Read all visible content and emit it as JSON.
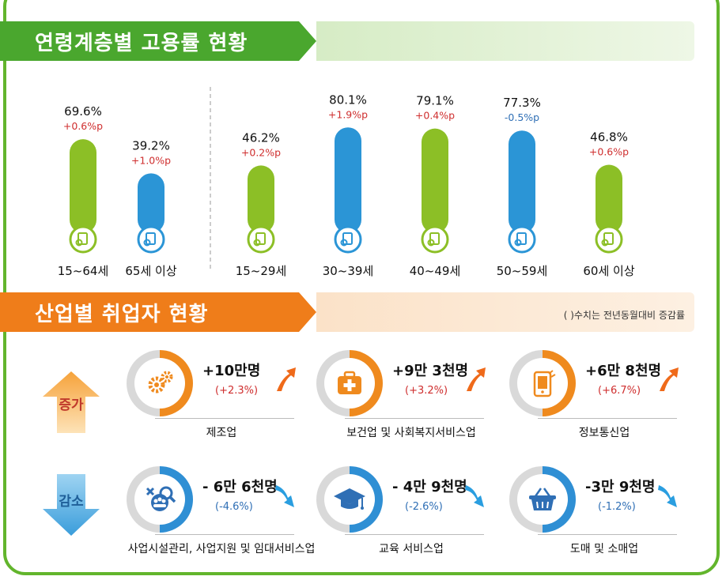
{
  "section1": {
    "title": "연령계층별 고용률 현황"
  },
  "section2": {
    "title": "산업별 취업자 현황",
    "note": "( )수치는 전년동월대비 증감률"
  },
  "colors": {
    "green": "#8cbf26",
    "blue": "#2b95d6",
    "orange": "#ef7d1a",
    "up": "#cf2e2e",
    "down": "#2f6fb5"
  },
  "chart_data": {
    "type": "bar",
    "title": "연령계층별 고용률 현황",
    "categories": [
      "15~64세",
      "65세 이상",
      "15~29세",
      "30~39세",
      "40~49세",
      "50~59세",
      "60세 이상"
    ],
    "values": [
      69.6,
      39.2,
      46.2,
      80.1,
      79.1,
      77.3,
      46.8
    ],
    "value_labels": [
      "69.6%",
      "39.2%",
      "46.2%",
      "80.1%",
      "79.1%",
      "77.3%",
      "46.8%"
    ],
    "changes": [
      0.6,
      1.0,
      0.2,
      1.9,
      0.4,
      -0.5,
      0.6
    ],
    "change_labels": [
      "+0.6%p",
      "+1.0%p",
      "+0.2%p",
      "+1.9%p",
      "+0.4%p",
      "-0.5%p",
      "+0.6%p"
    ],
    "bar_colors": [
      "green",
      "blue",
      "green",
      "blue",
      "green",
      "blue",
      "green"
    ],
    "unit": "%"
  },
  "increase": {
    "tag": "증가",
    "items": [
      {
        "name": "제조업",
        "value": "+10만명",
        "pct": "(+2.3%)",
        "icon": "gears-icon"
      },
      {
        "name": "보건업 및 사회복지서비스업",
        "value": "+9만 3천명",
        "pct": "(+3.2%)",
        "icon": "medical-kit-icon"
      },
      {
        "name": "정보통신업",
        "value": "+6만 8천명",
        "pct": "(+6.7%)",
        "icon": "mobile-phone-icon"
      }
    ]
  },
  "decrease": {
    "tag": "감소",
    "items": [
      {
        "name": "사업시설관리, 사업지원 및 임대서비스업",
        "value": "- 6만 6천명",
        "pct": "(-4.6%)",
        "icon": "tools-people-icon"
      },
      {
        "name": "교육 서비스업",
        "value": "- 4만 9천명",
        "pct": "(-2.6%)",
        "icon": "graduation-cap-icon"
      },
      {
        "name": "도매 및 소매업",
        "value": "-3만 9천명",
        "pct": "(-1.2%)",
        "icon": "shopping-basket-icon"
      }
    ]
  }
}
